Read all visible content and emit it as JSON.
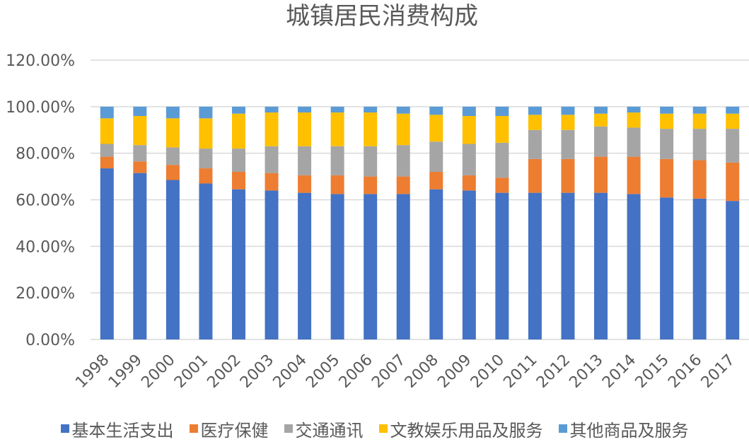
{
  "chart_data": {
    "type": "bar",
    "stacked": true,
    "title": "城镇居民消费构成",
    "xlabel": "",
    "ylabel": "",
    "ylim": [
      0,
      120
    ],
    "y_ticks": [
      "0.00%",
      "20.00%",
      "40.00%",
      "60.00%",
      "80.00%",
      "100.00%",
      "120.00%"
    ],
    "grid": true,
    "legend_position": "bottom",
    "categories": [
      "1998",
      "1999",
      "2000",
      "2001",
      "2002",
      "2003",
      "2004",
      "2005",
      "2006",
      "2007",
      "2008",
      "2009",
      "2010",
      "2011",
      "2012",
      "2013",
      "2014",
      "2015",
      "2016",
      "2017"
    ],
    "series": [
      {
        "name": "基本生活支出",
        "color": "#4472c4",
        "values": [
          73.5,
          71.5,
          68.5,
          67.0,
          64.5,
          64.0,
          63.0,
          62.5,
          62.5,
          62.5,
          64.5,
          64.0,
          63.0,
          63.0,
          63.0,
          63.0,
          62.5,
          61.0,
          60.5,
          59.5
        ]
      },
      {
        "name": "医疗保健",
        "color": "#ed7d31",
        "values": [
          5.0,
          5.0,
          6.5,
          6.5,
          7.5,
          7.5,
          7.5,
          8.0,
          7.5,
          7.5,
          7.5,
          6.5,
          6.5,
          14.5,
          14.5,
          15.5,
          16.0,
          16.5,
          16.5,
          16.5
        ]
      },
      {
        "name": "交通通讯",
        "color": "#a5a5a5",
        "values": [
          5.5,
          7.0,
          7.5,
          8.5,
          10.0,
          11.5,
          12.5,
          12.5,
          13.0,
          13.5,
          13.0,
          13.5,
          15.0,
          12.5,
          12.5,
          13.0,
          12.5,
          13.0,
          13.5,
          14.5
        ]
      },
      {
        "name": "文教娱乐用品及服务",
        "color": "#ffc000",
        "values": [
          11.0,
          12.5,
          12.5,
          13.0,
          15.0,
          14.5,
          14.5,
          14.5,
          14.5,
          13.5,
          11.5,
          12.0,
          11.5,
          6.5,
          6.5,
          5.5,
          6.5,
          6.5,
          6.5,
          6.5
        ]
      },
      {
        "name": "其他商品及服务",
        "color": "#5b9bd5",
        "values": [
          5.0,
          4.0,
          5.0,
          5.0,
          3.0,
          2.5,
          2.5,
          2.5,
          2.5,
          3.0,
          3.5,
          4.0,
          4.0,
          3.5,
          3.5,
          3.0,
          2.5,
          3.0,
          3.0,
          3.0
        ]
      }
    ]
  }
}
